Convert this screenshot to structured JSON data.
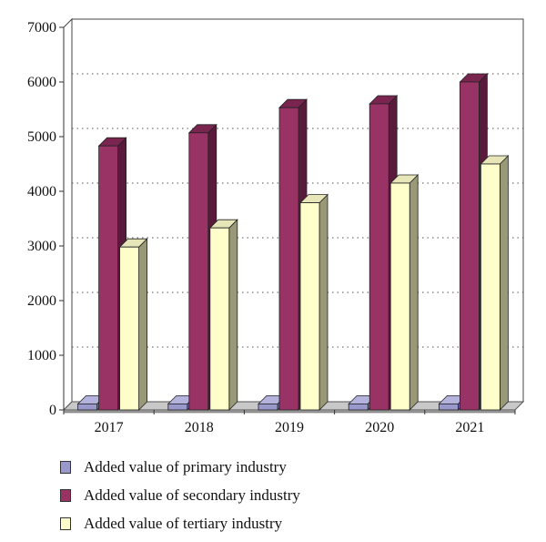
{
  "chart_data": {
    "type": "bar",
    "title": "",
    "xlabel": "",
    "ylabel": "",
    "categories": [
      "2017",
      "2018",
      "2019",
      "2020",
      "2021"
    ],
    "ylim": [
      0,
      7000
    ],
    "yticks": [
      0,
      1000,
      2000,
      3000,
      4000,
      5000,
      6000,
      7000
    ],
    "grid": "dotted horizontal",
    "legend_position": "bottom",
    "three_d": true,
    "series": [
      {
        "name": "Added value of primary industry",
        "values": [
          110,
          110,
          110,
          110,
          110
        ],
        "color": "#9a99cc",
        "side": "#6e6db0",
        "top": "#b4b3dd"
      },
      {
        "name": "Added value of secondary industry",
        "values": [
          4830,
          5070,
          5530,
          5600,
          6000
        ],
        "color": "#993366",
        "side": "#5a1a3c",
        "top": "#7a2550"
      },
      {
        "name": "Added value of tertiary industry",
        "values": [
          2980,
          3330,
          3790,
          4150,
          4500
        ],
        "color": "#ffffcc",
        "side": "#999977",
        "top": "#e6e6b8"
      }
    ]
  }
}
